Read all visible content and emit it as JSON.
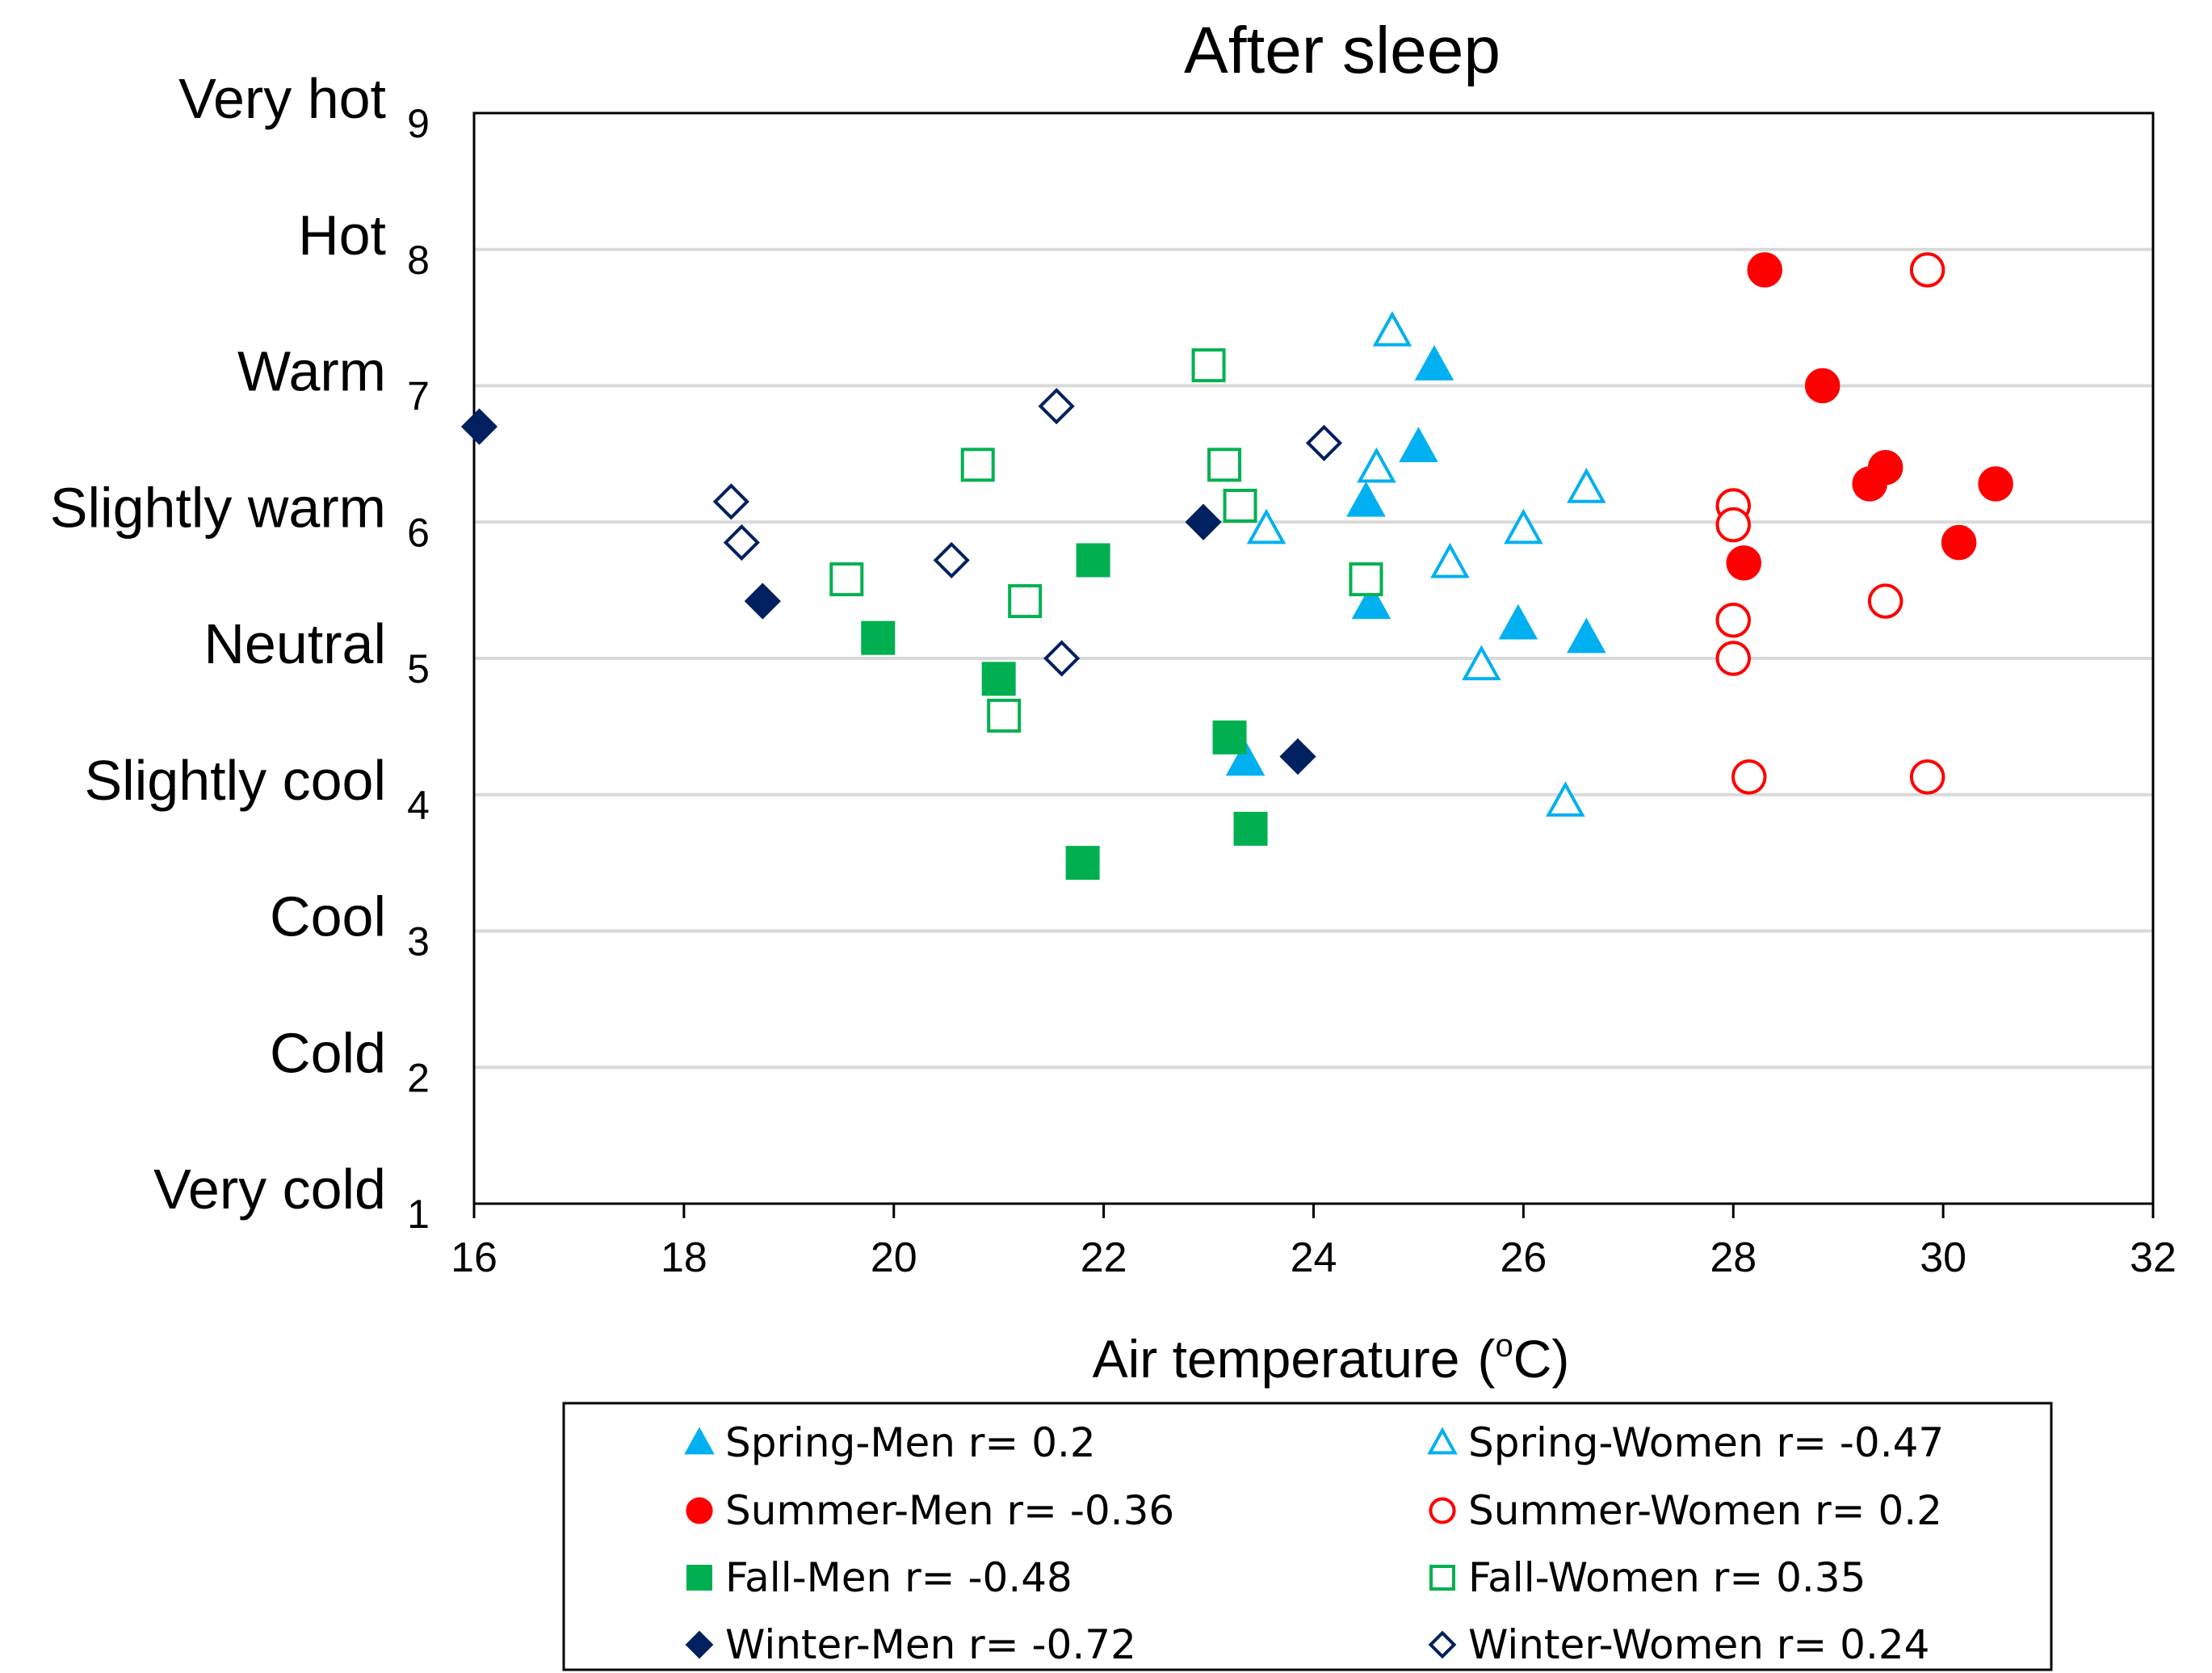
{
  "chart_data": {
    "type": "scatter",
    "title": "After sleep",
    "xlabel_main": "Air temperature",
    "xlabel_unit_open": "(",
    "xlabel_unit_sup": "o",
    "xlabel_unit_close": "C)",
    "xlim": [
      16,
      32
    ],
    "ylim": [
      1,
      9
    ],
    "x_ticks": [
      "16",
      "18",
      "20",
      "22",
      "24",
      "26",
      "28",
      "30",
      "32"
    ],
    "y_ticks": [
      "1",
      "2",
      "3",
      "4",
      "5",
      "6",
      "7",
      "8",
      "9"
    ],
    "y_category_labels": [
      "Very cold",
      "Cold",
      "Cool",
      "Slightly  cool",
      "Neutral",
      "Slightly  warm",
      "Warm",
      "Hot",
      "Very hot"
    ],
    "grid": "horizontal",
    "legend_position": "bottom",
    "series": [
      {
        "name": "Spring-Men r= 0.2",
        "marker": "triangle",
        "filled": true,
        "color": "#00B0F0",
        "x": [
          25.15,
          25.0,
          24.5,
          24.55,
          25.95,
          26.6,
          23.35
        ],
        "y": [
          7.15,
          6.55,
          6.15,
          5.4,
          5.25,
          5.15,
          4.25
        ]
      },
      {
        "name": "Spring-Women r= -0.47",
        "marker": "triangle",
        "filled": false,
        "color": "#00B0F0",
        "x": [
          24.75,
          24.6,
          26.6,
          23.55,
          26.0,
          25.3,
          25.6,
          26.4
        ],
        "y": [
          7.4,
          6.4,
          6.25,
          5.95,
          5.95,
          5.7,
          4.95,
          3.95
        ]
      },
      {
        "name": "Summer-Men r= -0.36",
        "marker": "circle",
        "filled": true,
        "color": "#FF0000",
        "x": [
          28.3,
          28.85,
          29.45,
          29.3,
          30.5,
          30.15,
          28.1
        ],
        "y": [
          7.85,
          7.0,
          6.4,
          6.28,
          6.28,
          5.85,
          5.7
        ]
      },
      {
        "name": "Summer-Women r= 0.2",
        "marker": "circle",
        "filled": false,
        "color": "#FF0000",
        "x": [
          29.85,
          28.0,
          28.0,
          29.45,
          28.0,
          28.0,
          28.15,
          29.85
        ],
        "y": [
          7.85,
          6.12,
          5.98,
          5.42,
          5.28,
          5.0,
          4.13,
          4.13
        ]
      },
      {
        "name": "Fall-Men r= -0.48",
        "marker": "square",
        "filled": true,
        "color": "#00B050",
        "x": [
          21.9,
          19.85,
          21.0,
          23.2,
          23.4,
          21.8
        ],
        "y": [
          5.72,
          5.15,
          4.85,
          4.42,
          3.75,
          3.5
        ]
      },
      {
        "name": "Fall-Women r= 0.35",
        "marker": "square",
        "filled": false,
        "color": "#00B050",
        "x": [
          23.0,
          20.8,
          23.15,
          23.3,
          19.55,
          21.25,
          24.5,
          21.05
        ],
        "y": [
          7.15,
          6.42,
          6.42,
          6.12,
          5.58,
          5.42,
          5.58,
          4.58
        ]
      },
      {
        "name": "Winter-Men r= -0.72",
        "marker": "diamond",
        "filled": true,
        "color": "#002060",
        "x": [
          16.05,
          18.75,
          22.95,
          23.85
        ],
        "y": [
          6.7,
          5.42,
          6.0,
          4.28
        ]
      },
      {
        "name": "Winter-Women r= 0.24",
        "marker": "diamond",
        "filled": false,
        "color": "#002060",
        "x": [
          21.55,
          24.1,
          18.45,
          18.55,
          20.55,
          21.6
        ],
        "y": [
          6.85,
          6.58,
          6.15,
          5.85,
          5.72,
          5.0
        ]
      }
    ]
  }
}
